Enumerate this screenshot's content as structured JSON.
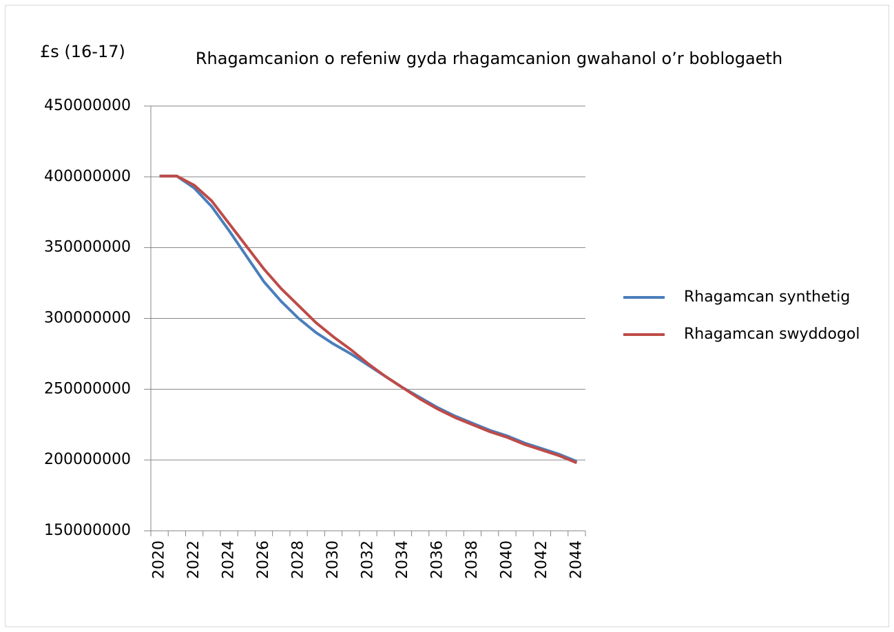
{
  "chart_data": {
    "type": "line",
    "title": "Rhagamcanion o refeniw gyda rhagamcanion gwahanol o’r boblogaeth",
    "y_label": "£s (16-17)",
    "categories": [
      "2020",
      null,
      "2022",
      null,
      "2024",
      null,
      "2026",
      null,
      "2028",
      null,
      "2030",
      null,
      "2032",
      null,
      "2034",
      null,
      "2036",
      null,
      "2038",
      null,
      "2040",
      null,
      "2042",
      null,
      "2044"
    ],
    "series": [
      {
        "name": "Rhagamcan synthetig",
        "color": "#4a7ebb",
        "values": [
          400500000,
          400500000,
          392000000,
          379000000,
          362000000,
          344000000,
          326000000,
          312000000,
          300000000,
          290000000,
          282000000,
          275000000,
          267000000,
          259000000,
          251000000,
          244000000,
          237000000,
          231000000,
          226000000,
          221000000,
          217000000,
          212000000,
          208000000,
          204000000,
          199000000
        ]
      },
      {
        "name": "Rhagamcan swyddogol",
        "color": "#be4b48",
        "values": [
          400500000,
          400500000,
          394000000,
          383000000,
          367000000,
          351000000,
          335000000,
          321000000,
          309000000,
          297000000,
          287000000,
          278000000,
          268000000,
          259000000,
          251000000,
          243000000,
          236000000,
          230000000,
          225000000,
          220000000,
          216000000,
          211000000,
          207000000,
          203000000,
          198000000
        ]
      }
    ],
    "ylim": [
      150000000,
      450000000
    ],
    "yticks": [
      150000000,
      200000000,
      250000000,
      300000000,
      350000000,
      400000000,
      450000000
    ],
    "grid": true,
    "legend": "right"
  }
}
